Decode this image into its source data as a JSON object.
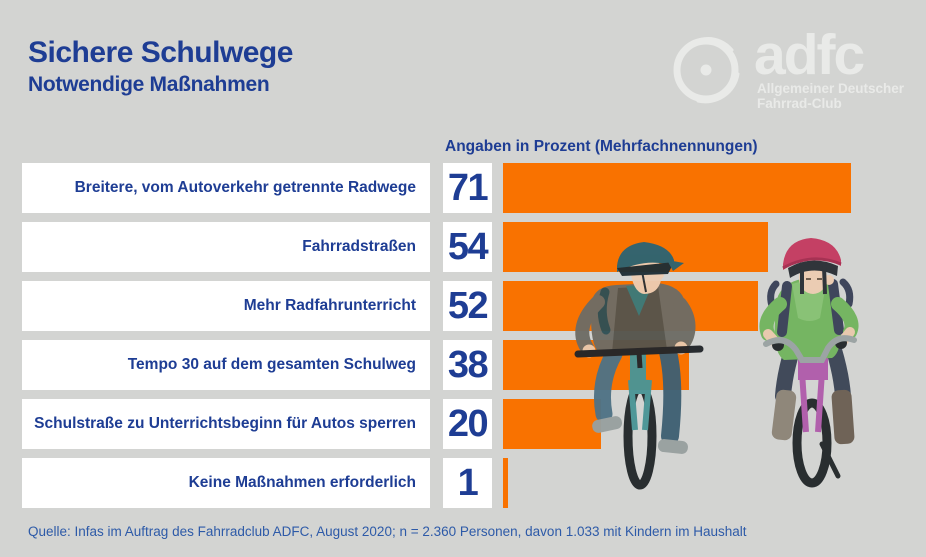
{
  "header": {
    "title": "Sichere Schulwege",
    "subtitle": "Notwendige Maßnahmen"
  },
  "logo": {
    "wordmark": "adfc",
    "tagline_line1": "Allgemeiner Deutscher",
    "tagline_line2": "Fahrrad-Club"
  },
  "chart_data": {
    "type": "bar",
    "orientation": "horizontal",
    "title": "Angaben in Prozent (Mehrfachnennungen)",
    "unit": "Prozent",
    "categories": [
      "Breitere, vom Autoverkehr getrennte Radwege",
      "Fahrradstraßen",
      "Mehr Radfahrunterricht",
      "Tempo 30 auf dem gesamten Schulweg",
      "Schulstraße zu Unterrichtsbeginn für Autos sperren",
      "Keine Maßnahmen erforderlich"
    ],
    "values": [
      71,
      54,
      52,
      38,
      20,
      1
    ],
    "xlim": [
      0,
      86
    ],
    "grid": false,
    "legend": false
  },
  "source": "Quelle: Infas im Auftrag des Fahrradclub ADFC, August 2020; n = 2.360 Personen, davon 1.033 mit Kindern im Haushalt",
  "colors": {
    "background": "#d3d4d2",
    "bar_orange": "#f97200",
    "title_blue": "#1e3d94",
    "source_blue": "#2d5aa8",
    "box_white": "#ffffff",
    "logo_white": "#e9eae8"
  }
}
